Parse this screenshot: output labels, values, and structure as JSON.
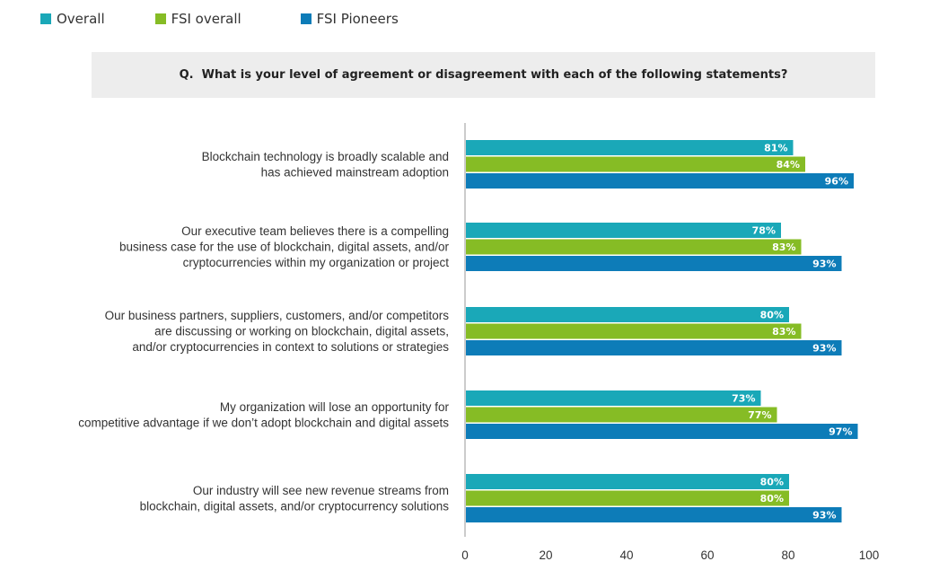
{
  "legend": [
    {
      "label": "Overall",
      "color": "#1aa8b8"
    },
    {
      "label": "FSI overall",
      "color": "#86bc25"
    },
    {
      "label": "FSI Pioneers",
      "color": "#0d7cb8"
    }
  ],
  "question": "Q.  What is your level of agreement or disagreement with each of the following statements?",
  "chart_data": {
    "type": "bar",
    "orientation": "horizontal",
    "categories": [
      [
        "Blockchain technology is broadly scalable and",
        "has achieved mainstream adoption"
      ],
      [
        "Our executive team believes there is a compelling",
        "business case for the use of blockchain, digital assets, and/or",
        "cryptocurrencies within my organization or project"
      ],
      [
        "Our business partners, suppliers, customers, and/or competitors",
        "are discussing or working on blockchain, digital assets,",
        "and/or cryptocurrencies in context to solutions or strategies"
      ],
      [
        "My organization will lose an opportunity for",
        "competitive advantage if we don’t adopt blockchain and digital assets"
      ],
      [
        "Our industry will see new revenue streams from",
        "blockchain, digital assets, and/or cryptocurrency solutions"
      ]
    ],
    "series": [
      {
        "name": "Overall",
        "color": "#1aa8b8",
        "values": [
          81,
          78,
          80,
          73,
          80
        ],
        "labels": [
          "81%",
          "78%",
          "80%",
          "73%",
          "80%"
        ]
      },
      {
        "name": "FSI overall",
        "color": "#86bc25",
        "values": [
          84,
          83,
          83,
          77,
          80
        ],
        "labels": [
          "84%",
          "83%",
          "83%",
          "77%",
          "80%"
        ]
      },
      {
        "name": "FSI Pioneers",
        "color": "#0d7cb8",
        "values": [
          96,
          93,
          93,
          97,
          93
        ],
        "labels": [
          "96%",
          "93%",
          "93%",
          "97%",
          "93%"
        ]
      }
    ],
    "xlim": [
      0,
      100
    ],
    "xticks": [
      "0",
      "20",
      "40",
      "60",
      "80",
      "100"
    ],
    "xtick_values": [
      0,
      20,
      40,
      60,
      80,
      100
    ],
    "legend_position": "top-left",
    "grid": false
  }
}
